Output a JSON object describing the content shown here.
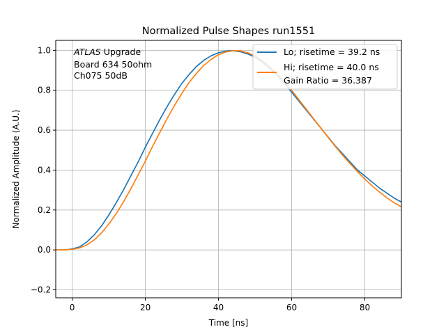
{
  "chart_data": {
    "type": "line",
    "title": "Normalized Pulse Shapes run1551",
    "xlabel": "Time [ns]",
    "ylabel": "Normalized Amplitude (A.U.)",
    "xlim": [
      -4.5,
      90
    ],
    "ylim": [
      -0.24,
      1.05
    ],
    "xticks": [
      0,
      20,
      40,
      60,
      80
    ],
    "yticks": [
      -0.2,
      0.0,
      0.2,
      0.4,
      0.6,
      0.8,
      1.0
    ],
    "xtick_labels": [
      "0",
      "20",
      "40",
      "60",
      "80"
    ],
    "ytick_labels": [
      "−0.2",
      "0.0",
      "0.2",
      "0.4",
      "0.6",
      "0.8",
      "1.0"
    ],
    "grid": true,
    "legend_position": "top-right",
    "annotation": {
      "line1_italic": "ATLAS",
      "line1_rest": " Upgrade",
      "line2": " Board 634 50ohm",
      "line3": " Ch075 50dB"
    },
    "series": [
      {
        "name": "Lo; risetime = 39.2 ns",
        "color": "#1f77b4",
        "x": [
          -5,
          -2,
          0,
          2,
          4,
          6,
          8,
          10,
          12,
          14,
          16,
          18,
          20,
          22,
          24,
          26,
          28,
          30,
          32,
          34,
          36,
          38,
          40,
          42,
          44,
          46,
          48,
          50,
          52,
          54,
          56,
          58,
          60,
          62,
          64,
          66,
          68,
          70,
          72,
          74,
          76,
          78,
          80,
          82,
          84,
          86,
          88,
          90
        ],
        "y": [
          0.0,
          0.0,
          0.005,
          0.015,
          0.04,
          0.075,
          0.12,
          0.175,
          0.235,
          0.3,
          0.37,
          0.44,
          0.515,
          0.585,
          0.655,
          0.72,
          0.78,
          0.835,
          0.88,
          0.92,
          0.95,
          0.973,
          0.988,
          0.996,
          0.998,
          0.993,
          0.982,
          0.965,
          0.94,
          0.91,
          0.875,
          0.835,
          0.79,
          0.745,
          0.7,
          0.655,
          0.61,
          0.565,
          0.52,
          0.48,
          0.44,
          0.4,
          0.37,
          0.34,
          0.31,
          0.285,
          0.26,
          0.24
        ]
      },
      {
        "name": "Hi; risetime = 40.0 ns",
        "color": "#ff7f0e",
        "x": [
          -5,
          -2,
          0,
          2,
          4,
          6,
          8,
          10,
          12,
          14,
          16,
          18,
          20,
          22,
          24,
          26,
          28,
          30,
          32,
          34,
          36,
          38,
          40,
          42,
          44,
          46,
          48,
          50,
          52,
          54,
          56,
          58,
          60,
          62,
          64,
          66,
          68,
          70,
          72,
          74,
          76,
          78,
          80,
          82,
          84,
          86,
          88,
          90
        ],
        "y": [
          0.0,
          0.0,
          0.003,
          0.01,
          0.025,
          0.05,
          0.085,
          0.13,
          0.18,
          0.24,
          0.305,
          0.375,
          0.445,
          0.52,
          0.59,
          0.66,
          0.725,
          0.785,
          0.84,
          0.885,
          0.925,
          0.955,
          0.978,
          0.992,
          0.998,
          0.997,
          0.988,
          0.972,
          0.948,
          0.918,
          0.883,
          0.843,
          0.8,
          0.752,
          0.705,
          0.657,
          0.61,
          0.563,
          0.517,
          0.473,
          0.432,
          0.392,
          0.355,
          0.321,
          0.29,
          0.262,
          0.236,
          0.216
        ]
      }
    ],
    "legend_extra": " Gain Ratio = 36.387"
  }
}
